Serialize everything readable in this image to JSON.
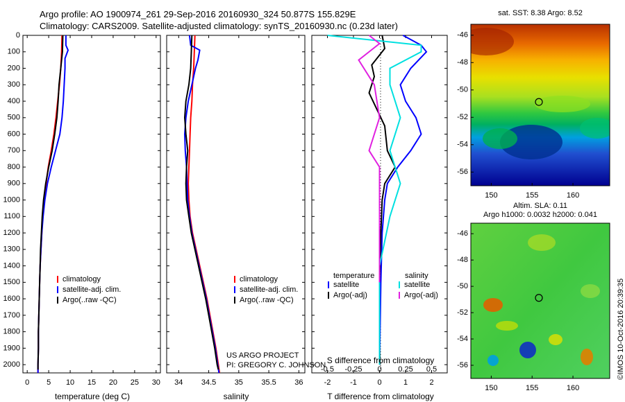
{
  "header": {
    "title_line1": "Argo profile: AO 1900974_261 29-Sep-2016 20160930_324 50.877S 155.829E",
    "title_line2": "Climatology: CARS2009. Satellite-adjusted climatology: synTS_20160930.nc (0.23d later)"
  },
  "colors": {
    "climatology": "#ff0000",
    "satellite": "#0000ff",
    "argo": "#000000",
    "sat_salinity": "#00e0e0",
    "argo_salinity": "#e020e0"
  },
  "chart_data": [
    {
      "type": "line",
      "panel": "temperature",
      "xlabel": "temperature (deg C)",
      "xlim": [
        -1,
        31
      ],
      "xticks": [
        0,
        5,
        10,
        15,
        20,
        25,
        30
      ],
      "ylim": [
        2050,
        0
      ],
      "yticks": [
        0,
        100,
        200,
        300,
        400,
        500,
        600,
        700,
        800,
        900,
        1000,
        1100,
        1200,
        1300,
        1400,
        1500,
        1600,
        1700,
        1800,
        1900,
        2000
      ],
      "legend": [
        "climatology",
        "satellite-adj. clim.",
        "Argo(..raw -QC)"
      ],
      "series": [
        {
          "name": "climatology",
          "color": "#ff0000",
          "points": [
            [
              8.1,
              0
            ],
            [
              8.0,
              100
            ],
            [
              7.8,
              200
            ],
            [
              7.5,
              300
            ],
            [
              7.1,
              400
            ],
            [
              6.7,
              500
            ],
            [
              6.2,
              600
            ],
            [
              5.6,
              700
            ],
            [
              4.9,
              800
            ],
            [
              4.4,
              900
            ],
            [
              3.9,
              1000
            ],
            [
              3.6,
              1100
            ],
            [
              3.4,
              1200
            ],
            [
              3.2,
              1300
            ],
            [
              3.0,
              1400
            ],
            [
              2.9,
              1500
            ],
            [
              2.8,
              1600
            ],
            [
              2.7,
              1700
            ],
            [
              2.6,
              1800
            ],
            [
              2.6,
              1900
            ],
            [
              2.5,
              2000
            ],
            [
              2.5,
              2050
            ]
          ]
        },
        {
          "name": "satellite-adj. clim.",
          "color": "#0000ff",
          "points": [
            [
              9.0,
              0
            ],
            [
              9.0,
              60
            ],
            [
              9.5,
              90
            ],
            [
              8.8,
              140
            ],
            [
              8.8,
              200
            ],
            [
              8.6,
              300
            ],
            [
              8.4,
              400
            ],
            [
              8.1,
              500
            ],
            [
              7.6,
              600
            ],
            [
              6.6,
              700
            ],
            [
              5.6,
              800
            ],
            [
              4.7,
              900
            ],
            [
              4.1,
              1000
            ],
            [
              3.7,
              1100
            ],
            [
              3.4,
              1200
            ],
            [
              3.2,
              1300
            ],
            [
              3.0,
              1400
            ],
            [
              2.9,
              1500
            ],
            [
              2.8,
              1600
            ],
            [
              2.7,
              1700
            ],
            [
              2.6,
              1800
            ],
            [
              2.6,
              1900
            ],
            [
              2.5,
              2000
            ],
            [
              2.5,
              2050
            ]
          ]
        },
        {
          "name": "Argo(..raw -QC)",
          "color": "#000000",
          "points": [
            [
              8.3,
              0
            ],
            [
              8.2,
              100
            ],
            [
              7.8,
              200
            ],
            [
              7.4,
              300
            ],
            [
              7.2,
              400
            ],
            [
              6.9,
              500
            ],
            [
              6.4,
              600
            ],
            [
              5.8,
              700
            ],
            [
              5.0,
              800
            ],
            [
              4.3,
              900
            ],
            [
              3.8,
              1000
            ],
            [
              3.5,
              1100
            ],
            [
              3.3,
              1200
            ],
            [
              3.1,
              1300
            ],
            [
              3.0,
              1400
            ],
            [
              2.9,
              1500
            ],
            [
              2.8,
              1600
            ],
            [
              2.7,
              1700
            ],
            [
              2.6,
              1800
            ],
            [
              2.6,
              1900
            ],
            [
              2.5,
              2000
            ],
            [
              2.5,
              2030
            ]
          ]
        }
      ]
    },
    {
      "type": "line",
      "panel": "salinity",
      "xlabel": "salinity",
      "xlim": [
        33.8,
        36.1
      ],
      "xticks": [
        34,
        34.5,
        35,
        35.5,
        36
      ],
      "ylim": [
        2050,
        0
      ],
      "legend": [
        "climatology",
        "satellite-adj. clim.",
        "Argo(..raw -QC)"
      ],
      "series": [
        {
          "name": "climatology",
          "color": "#ff0000",
          "points": [
            [
              34.27,
              0
            ],
            [
              34.26,
              100
            ],
            [
              34.25,
              200
            ],
            [
              34.23,
              300
            ],
            [
              34.22,
              400
            ],
            [
              34.2,
              500
            ],
            [
              34.19,
              600
            ],
            [
              34.18,
              700
            ],
            [
              34.17,
              800
            ],
            [
              34.16,
              900
            ],
            [
              34.17,
              1000
            ],
            [
              34.19,
              1100
            ],
            [
              34.23,
              1200
            ],
            [
              34.29,
              1300
            ],
            [
              34.35,
              1400
            ],
            [
              34.41,
              1500
            ],
            [
              34.47,
              1600
            ],
            [
              34.52,
              1700
            ],
            [
              34.57,
              1800
            ],
            [
              34.62,
              1900
            ],
            [
              34.66,
              2000
            ],
            [
              34.68,
              2050
            ]
          ]
        },
        {
          "name": "satellite-adj. clim.",
          "color": "#0000ff",
          "points": [
            [
              34.18,
              0
            ],
            [
              34.2,
              60
            ],
            [
              34.35,
              90
            ],
            [
              34.32,
              150
            ],
            [
              34.28,
              200
            ],
            [
              34.22,
              300
            ],
            [
              34.16,
              400
            ],
            [
              34.12,
              500
            ],
            [
              34.1,
              600
            ],
            [
              34.11,
              700
            ],
            [
              34.13,
              800
            ],
            [
              34.14,
              900
            ],
            [
              34.15,
              1000
            ],
            [
              34.18,
              1100
            ],
            [
              34.22,
              1200
            ],
            [
              34.28,
              1300
            ],
            [
              34.34,
              1400
            ],
            [
              34.4,
              1500
            ],
            [
              34.46,
              1600
            ],
            [
              34.51,
              1700
            ],
            [
              34.56,
              1800
            ],
            [
              34.61,
              1900
            ],
            [
              34.65,
              2000
            ],
            [
              34.67,
              2050
            ]
          ]
        },
        {
          "name": "Argo(..raw -QC)",
          "color": "#000000",
          "points": [
            [
              34.22,
              0
            ],
            [
              34.21,
              100
            ],
            [
              34.2,
              200
            ],
            [
              34.17,
              300
            ],
            [
              34.12,
              400
            ],
            [
              34.1,
              500
            ],
            [
              34.12,
              600
            ],
            [
              34.15,
              700
            ],
            [
              34.13,
              800
            ],
            [
              34.12,
              900
            ],
            [
              34.13,
              1000
            ],
            [
              34.17,
              1100
            ],
            [
              34.21,
              1200
            ],
            [
              34.27,
              1300
            ],
            [
              34.33,
              1400
            ],
            [
              34.39,
              1500
            ],
            [
              34.45,
              1600
            ],
            [
              34.5,
              1700
            ],
            [
              34.55,
              1800
            ],
            [
              34.6,
              1900
            ],
            [
              34.64,
              2000
            ],
            [
              34.66,
              2030
            ]
          ]
        }
      ]
    },
    {
      "type": "line",
      "panel": "difference",
      "xlabel": "T difference from climatology",
      "xlabel_top": "S difference from climatology",
      "xlim": [
        -2.6,
        2.6
      ],
      "xticks": [
        -2,
        -1,
        0,
        1,
        2
      ],
      "xticks_salinity": [
        "-0.5",
        "-0.25",
        "0",
        "0.25",
        "0.5"
      ],
      "ylim": [
        2050,
        0
      ],
      "legend_groups": [
        {
          "title": "temperature",
          "entries": [
            "satellite",
            "Argo(-adj)"
          ]
        },
        {
          "title": "salinity",
          "entries": [
            "satellite",
            "Argo(-adj)"
          ]
        }
      ],
      "series": [
        {
          "name": "temperature satellite",
          "color": "#0000ff",
          "points": [
            [
              0.9,
              0
            ],
            [
              1.6,
              60
            ],
            [
              1.8,
              100
            ],
            [
              1.2,
              200
            ],
            [
              0.8,
              300
            ],
            [
              1.0,
              400
            ],
            [
              1.4,
              500
            ],
            [
              1.6,
              600
            ],
            [
              1.2,
              700
            ],
            [
              0.7,
              800
            ],
            [
              0.3,
              900
            ],
            [
              0.2,
              1000
            ],
            [
              0.1,
              1200
            ],
            [
              0.05,
              1500
            ],
            [
              0,
              2000
            ]
          ]
        },
        {
          "name": "temperature Argo(-adj)",
          "color": "#000000",
          "points": [
            [
              0.1,
              0
            ],
            [
              0.2,
              80
            ],
            [
              -0.3,
              180
            ],
            [
              -0.2,
              250
            ],
            [
              -0.4,
              350
            ],
            [
              -0.1,
              450
            ],
            [
              0.2,
              550
            ],
            [
              0.3,
              700
            ],
            [
              0.6,
              800
            ],
            [
              0.2,
              900
            ],
            [
              0.1,
              1000
            ],
            [
              0.05,
              1200
            ],
            [
              0.0,
              1500
            ],
            [
              0,
              1900
            ],
            [
              0.02,
              2000
            ]
          ]
        },
        {
          "name": "salinity satellite",
          "color": "#00e0e0",
          "points": [
            [
              -0.5,
              0
            ],
            [
              0.4,
              60
            ],
            [
              0.4,
              100
            ],
            [
              0.1,
              200
            ],
            [
              0.1,
              300
            ],
            [
              0.2,
              500
            ],
            [
              0.1,
              700
            ],
            [
              0.2,
              900
            ],
            [
              0.1,
              1100
            ],
            [
              0.0,
              1400
            ],
            [
              0,
              2000
            ]
          ]
        },
        {
          "name": "salinity Argo(-adj)",
          "color": "#e020e0",
          "points": [
            [
              -0.1,
              0
            ],
            [
              0.0,
              50
            ],
            [
              -0.2,
              150
            ],
            [
              -0.05,
              300
            ],
            [
              0.0,
              500
            ],
            [
              -0.1,
              700
            ],
            [
              0.0,
              800
            ],
            [
              0.0,
              1000
            ],
            [
              0.0,
              1200
            ],
            [
              0.0,
              1500
            ]
          ]
        }
      ]
    }
  ],
  "panels": {
    "ylabels": [
      "0",
      "100",
      "200",
      "300",
      "400",
      "500",
      "600",
      "700",
      "800",
      "900",
      "1000",
      "1100",
      "1200",
      "1300",
      "1400",
      "1500",
      "1600",
      "1700",
      "1800",
      "1900",
      "2000"
    ],
    "temp_legend": [
      "climatology",
      "satellite-adj. clim.",
      "Argo(..raw -QC)"
    ],
    "sal_legend": [
      "climatology",
      "satellite-adj. clim.",
      "Argo(..raw -QC)"
    ],
    "diff_legend": {
      "temp_title": "temperature",
      "sal_title": "salinity",
      "temp_entries": [
        "satellite",
        "Argo(-adj)"
      ],
      "sal_entries": [
        "satellite",
        "Argo(-adj)"
      ]
    },
    "credit_line1": "US ARGO PROJECT",
    "credit_line2": "PI: GREGORY C. JOHNSON"
  },
  "maps": {
    "sst_title": "sat. SST: 8.38 Argo: 8.52",
    "sla_title_line1": "Altim. SLA: 0.11",
    "sla_title_line2": "Argo h1000: 0.0032 h2000: 0.041",
    "lat_ticks": [
      "-46",
      "-48",
      "-50",
      "-52",
      "-54",
      "-56"
    ],
    "lon_ticks": [
      "150",
      "155",
      "160"
    ],
    "marker_lat": -50.877,
    "marker_lon": 155.829
  },
  "stamp": "©IMOS 10-Oct-2016 20:39:35"
}
